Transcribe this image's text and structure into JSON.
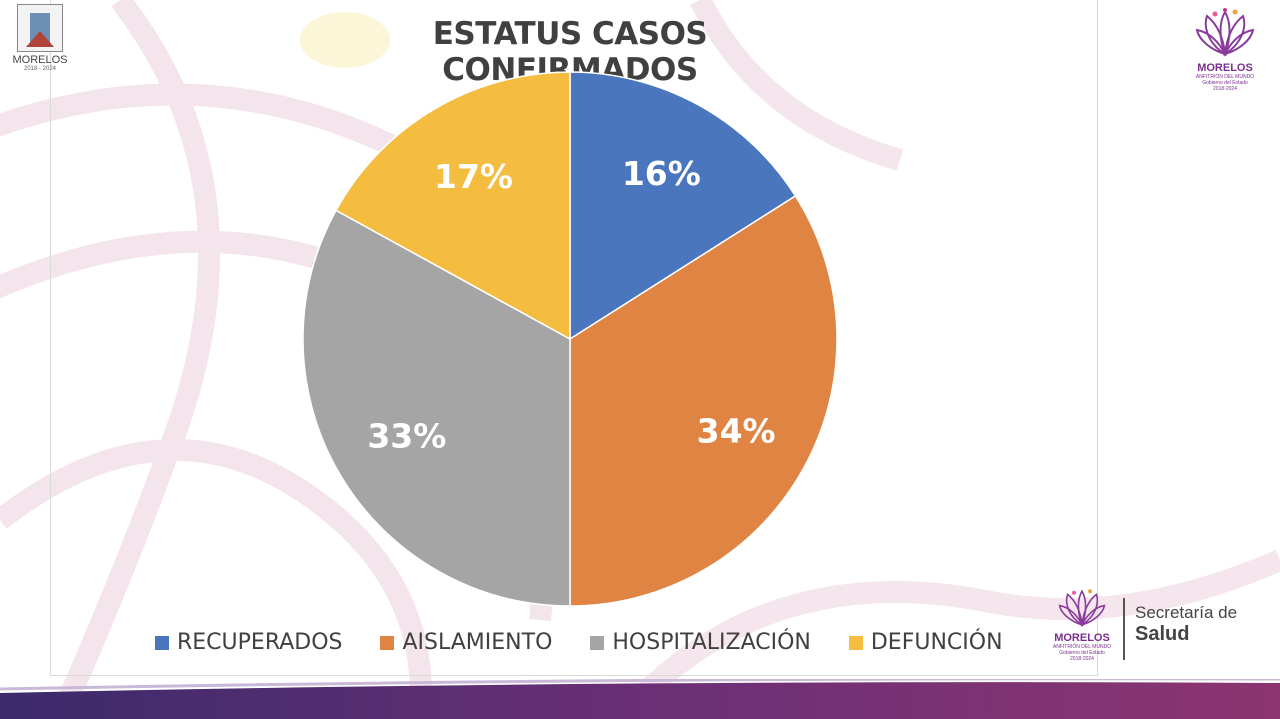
{
  "chart_data": {
    "type": "pie",
    "title": "ESTATUS CASOS CONFIRMADOS",
    "categories": [
      "RECUPERADOS",
      "AISLAMIENTO",
      "HOSPITALIZACIÓN",
      "DEFUNCIÓN"
    ],
    "values": [
      16,
      34,
      33,
      17
    ],
    "labels": [
      "16%",
      "34%",
      "33%",
      "17%"
    ],
    "colors": [
      "#4a76bd",
      "#df8443",
      "#a5a5a5",
      "#f5bd40"
    ],
    "legend_position": "bottom"
  },
  "logos": {
    "left": {
      "name": "MORELOS",
      "years": "2018 - 2024"
    },
    "top_right": {
      "name": "MORELOS",
      "tagline": "ANFITRIÓN DEL MUNDO",
      "sub": "Gobierno del Estado",
      "years": "2018-2024"
    },
    "bottom_right": {
      "name": "MORELOS",
      "tagline": "ANFITRIÓN DEL MUNDO",
      "sub": "Gobierno del Estado",
      "years": "2018-2024"
    }
  },
  "secretaria": {
    "line1": "Secretaría de",
    "line2": "Salud"
  }
}
